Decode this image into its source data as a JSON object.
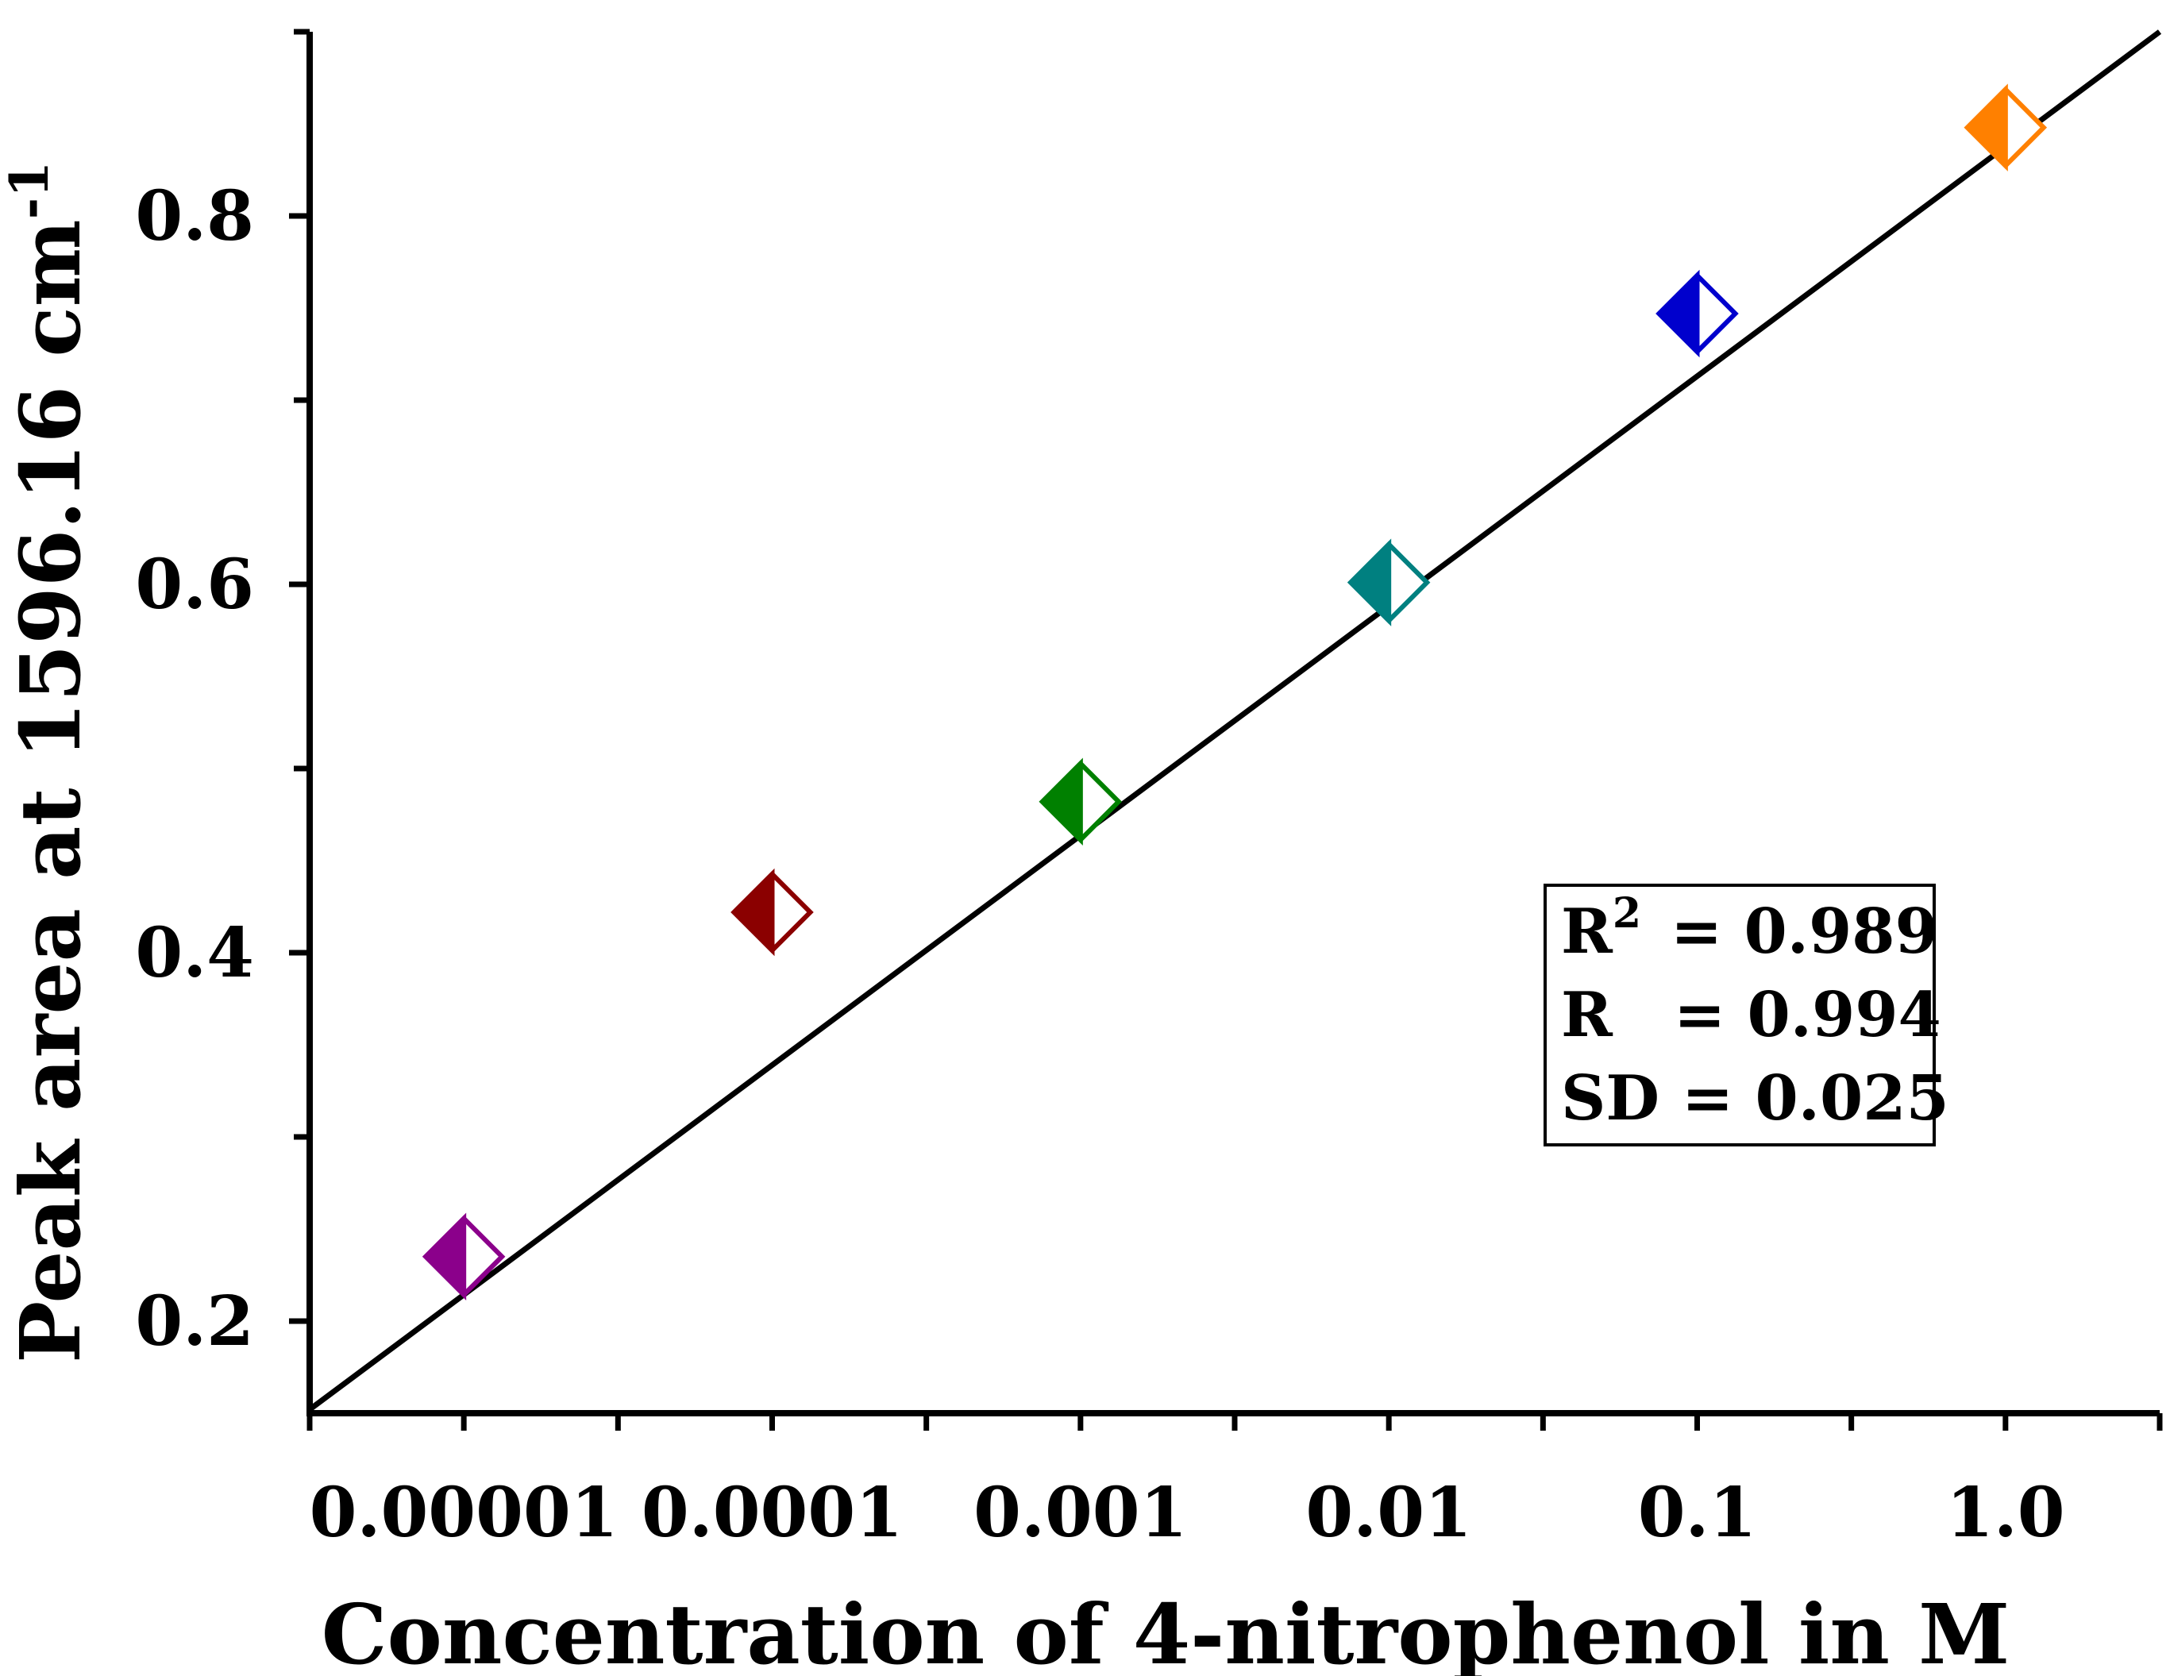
{
  "chart_data": {
    "type": "scatter",
    "title": "",
    "xlabel": "Concentration of 4-nitrophenol in M",
    "ylabel": {
      "text": "Peak area at 1596.16 cm",
      "superscript": "-1"
    },
    "x_scale": "log",
    "x_tick_labels": [
      "0.00001",
      "0.0001",
      "0.001",
      "0.01",
      "0.1",
      "1.0"
    ],
    "x_tick_values": [
      1e-05,
      0.0001,
      0.001,
      0.01,
      0.1,
      1.0
    ],
    "xlim_log10": [
      -5.5,
      0.5
    ],
    "y_tick_labels": [
      "0.2",
      "0.4",
      "0.6",
      "0.8"
    ],
    "y_tick_values": [
      0.2,
      0.4,
      0.6,
      0.8
    ],
    "ylim": [
      0.15,
      0.9
    ],
    "points": [
      {
        "x": 1e-05,
        "y": 0.235,
        "color": "#8b008b"
      },
      {
        "x": 0.0001,
        "y": 0.422,
        "color": "#8b0000"
      },
      {
        "x": 0.001,
        "y": 0.482,
        "color": "#008000"
      },
      {
        "x": 0.01,
        "y": 0.601,
        "color": "#008080"
      },
      {
        "x": 0.1,
        "y": 0.747,
        "color": "#0000cd"
      },
      {
        "x": 1.0,
        "y": 0.848,
        "color": "#ff8000"
      }
    ],
    "fit_line": {
      "x_start_log10": -5.5,
      "y_start": 0.152,
      "x_end_log10": 0.5,
      "y_end": 0.9,
      "color": "#000000"
    },
    "stats_box": {
      "r2_label": "R",
      "r2_sup": "2",
      "r2_value": "= 0.989",
      "r_label": "R",
      "r_value": "= 0.994",
      "sd_label": "SD",
      "sd_value": "= 0.025"
    }
  }
}
